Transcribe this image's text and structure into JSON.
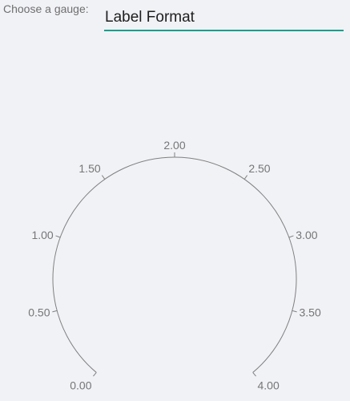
{
  "chooser": {
    "label": "Choose a gauge:",
    "selected": "Label Format"
  },
  "gauge": {
    "min": 0,
    "max": 4,
    "ticks": [
      {
        "value": 0,
        "label": "0.00"
      },
      {
        "value": 0.5,
        "label": "0.50"
      },
      {
        "value": 1,
        "label": "1.00"
      },
      {
        "value": 1.5,
        "label": "1.50"
      },
      {
        "value": 2,
        "label": "2.00"
      },
      {
        "value": 2.5,
        "label": "2.50"
      },
      {
        "value": 3,
        "label": "3.00"
      },
      {
        "value": 3.5,
        "label": "3.50"
      },
      {
        "value": 4,
        "label": "4.00"
      }
    ],
    "colors": {
      "arc": "#808080",
      "tick": "#808080",
      "label": "#767676",
      "accent": "#14a08c"
    }
  }
}
